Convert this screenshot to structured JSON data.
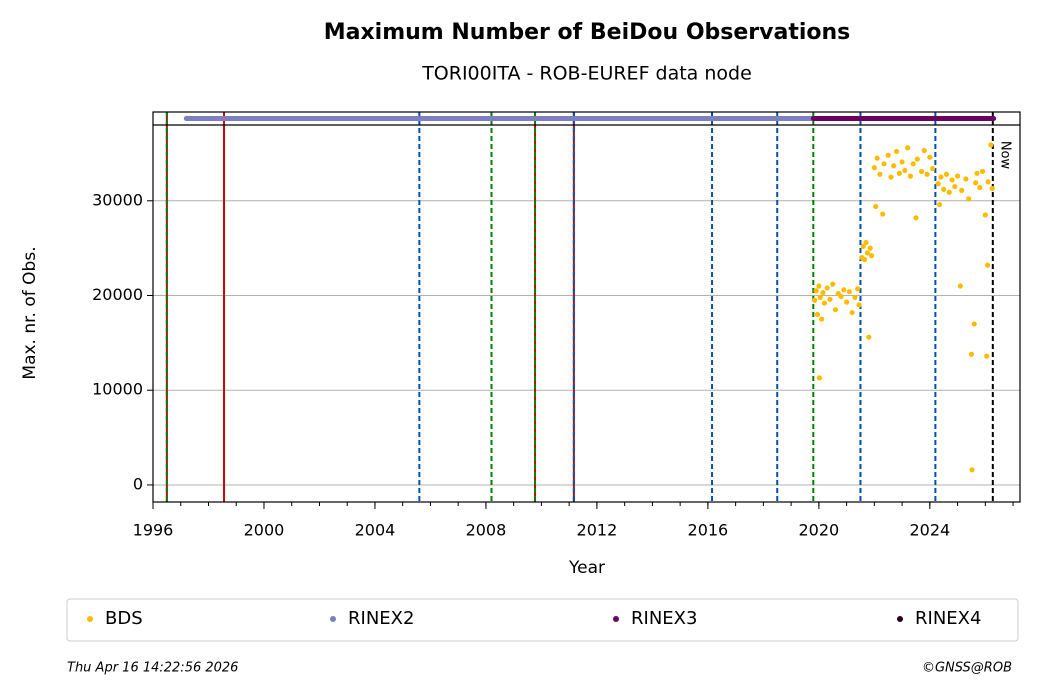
{
  "chart_data": {
    "type": "scatter",
    "title": "Maximum Number of BeiDou Observations",
    "subtitle": "TORI00ITA - ROB-EUREF data node",
    "x_label": "Year",
    "y_label": "Max. nr. of Obs.",
    "xlim": [
      1996,
      2027.25
    ],
    "ylim": [
      -1800,
      38000
    ],
    "xticks": [
      1996,
      2000,
      2004,
      2008,
      2012,
      2016,
      2020,
      2024
    ],
    "yticks": [
      0,
      10000,
      20000,
      30000
    ],
    "grid": true,
    "series": [
      {
        "name": "BDS",
        "color": "#ffbb00",
        "x": [
          2019.85,
          2019.9,
          2019.95,
          2020.0,
          2020.02,
          2020.05,
          2020.1,
          2020.15,
          2020.2,
          2020.3,
          2020.4,
          2020.5,
          2020.6,
          2020.7,
          2020.8,
          2020.9,
          2021.0,
          2021.1,
          2021.2,
          2021.3,
          2021.4,
          2021.45,
          2021.55,
          2021.6,
          2021.65,
          2021.7,
          2021.75,
          2021.8,
          2021.85,
          2021.9,
          2022.0,
          2022.05,
          2022.1,
          2022.2,
          2022.3,
          2022.35,
          2022.5,
          2022.6,
          2022.7,
          2022.8,
          2022.9,
          2023.0,
          2023.1,
          2023.2,
          2023.3,
          2023.4,
          2023.5,
          2023.55,
          2023.7,
          2023.8,
          2023.9,
          2024.0,
          2024.1,
          2024.3,
          2024.35,
          2024.4,
          2024.5,
          2024.6,
          2024.7,
          2024.8,
          2024.9,
          2025.0,
          2025.1,
          2025.15,
          2025.3,
          2025.4,
          2025.5,
          2025.52,
          2025.6,
          2025.65,
          2025.7,
          2025.8,
          2025.9,
          2026.0,
          2026.05,
          2026.08,
          2026.1,
          2026.2,
          2026.25
        ],
        "values": [
          19500,
          20500,
          18000,
          21000,
          11300,
          19800,
          17500,
          20300,
          19200,
          20800,
          19600,
          21200,
          18500,
          20200,
          19900,
          20600,
          19300,
          20400,
          18200,
          19800,
          20700,
          19000,
          24000,
          25200,
          23800,
          25600,
          24500,
          15600,
          25000,
          24200,
          33500,
          29400,
          34500,
          32800,
          28600,
          33900,
          34800,
          32500,
          33700,
          35200,
          32900,
          34100,
          33200,
          35600,
          32600,
          33900,
          28200,
          34400,
          33100,
          35300,
          32800,
          34600,
          33400,
          31800,
          29600,
          32500,
          31200,
          32800,
          30900,
          32200,
          31500,
          32600,
          21000,
          31100,
          32300,
          30200,
          13800,
          1600,
          17000,
          31900,
          32900,
          31400,
          33100,
          28500,
          13600,
          23200,
          32000,
          35900,
          31300
        ]
      },
      {
        "name": "RINEX2",
        "color": "#7f7fbf",
        "start": 1997.2,
        "end": 2019.8
      },
      {
        "name": "RINEX3",
        "color": "#6a0060",
        "start": 2019.8,
        "end": 2026.3
      },
      {
        "name": "RINEX4",
        "color": "#2a0020"
      }
    ],
    "events": {
      "x": [
        1996.5,
        1996.5,
        1998.56,
        2005.6,
        2008.2,
        2009.77,
        2009.77,
        2011.17,
        2011.17,
        2016.15,
        2018.5,
        2019.8,
        2021.5,
        2024.2,
        2026.27
      ],
      "colors": [
        "#d00000",
        "#008000",
        "#d00000",
        "#0050b0",
        "#008000",
        "#d00000",
        "#008000",
        "#d00000",
        "#0050b0",
        "#0050b0",
        "#0050b0",
        "#008000",
        "#0050b0",
        "#0050b0",
        "#000000"
      ],
      "styles": [
        "solid",
        "dashed",
        "solid",
        "dashed",
        "dashed",
        "solid",
        "dashed",
        "solid",
        "dashed",
        "dashed",
        "dashed",
        "dashed",
        "dashed",
        "dashed",
        "dashed"
      ]
    },
    "annotations": [
      {
        "text": "Now"
      }
    ],
    "footer_left": "Thu Apr 16 14:22:56 2026",
    "footer_right": "©GNSS@ROB"
  }
}
